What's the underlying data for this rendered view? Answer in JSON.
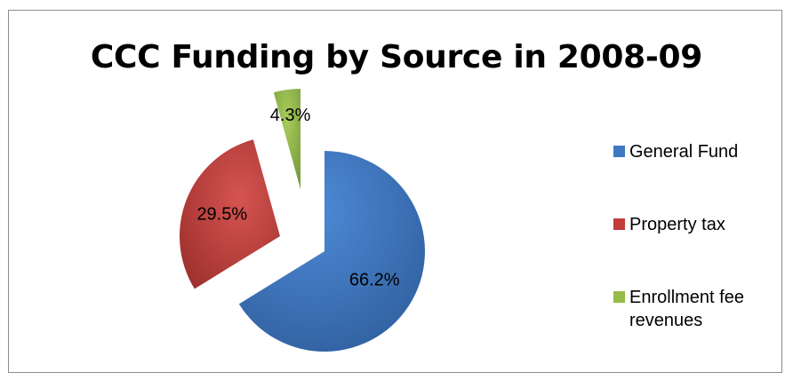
{
  "chart_data": {
    "type": "pie",
    "title": "CCC Funding by Source in 2008-09",
    "categories": [
      "General Fund",
      "Property tax",
      "Enrollment fee revenues"
    ],
    "values": [
      66.2,
      29.5,
      4.3
    ],
    "data_labels": [
      "66.2%",
      "29.5%",
      "4.3%"
    ],
    "colors": [
      "#3f78c2",
      "#c23d3a",
      "#95bb49"
    ],
    "exploded": true,
    "legend_position": "right"
  }
}
